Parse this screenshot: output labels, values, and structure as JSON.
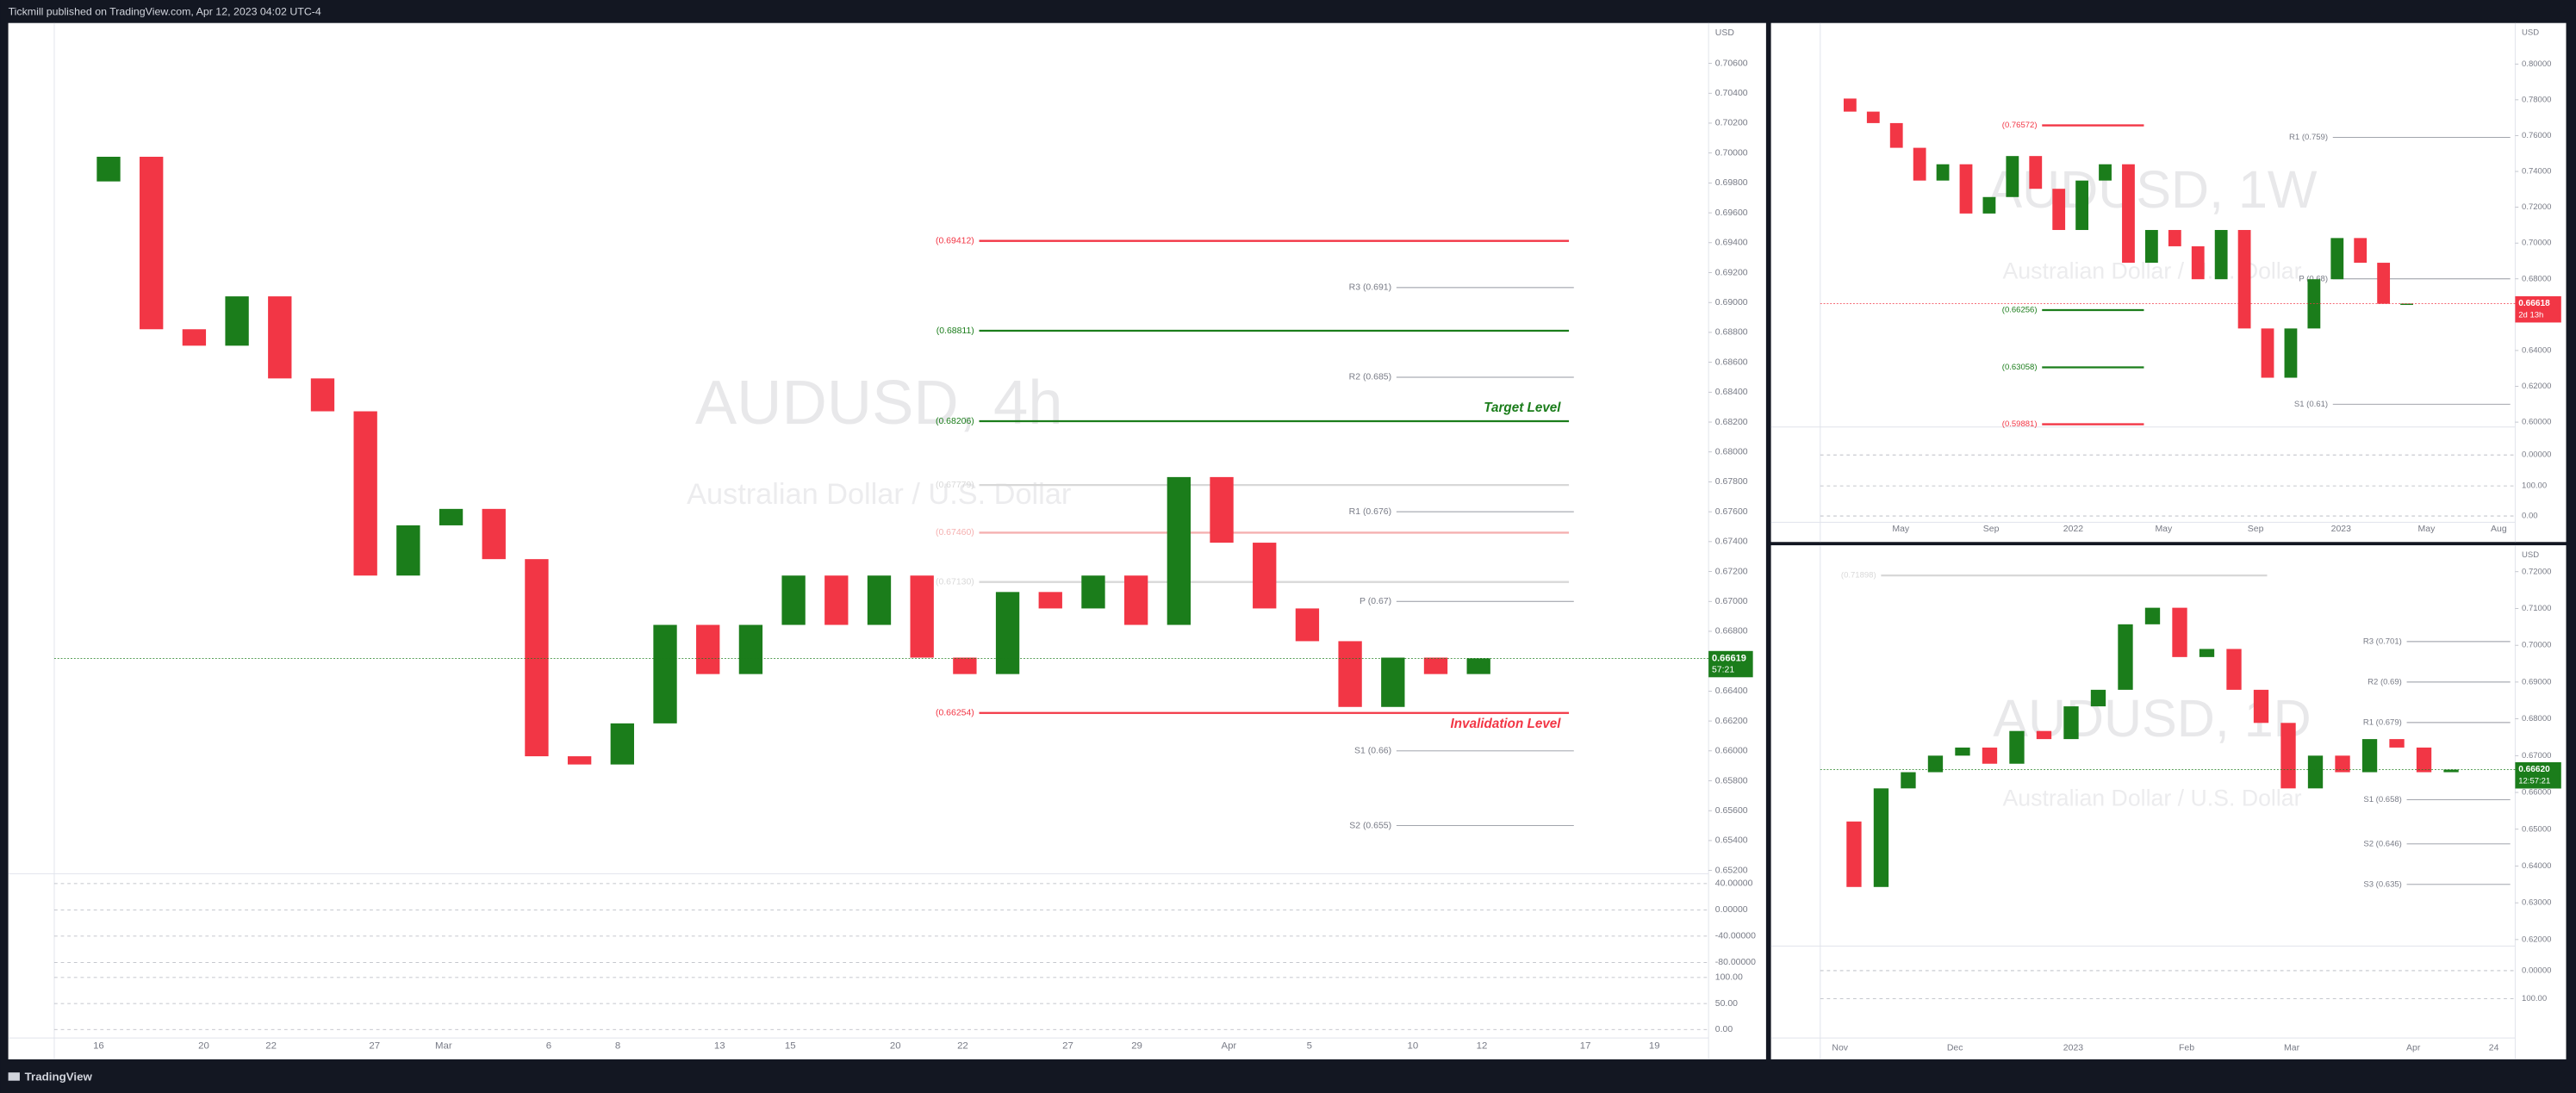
{
  "header": {
    "text": "Tickmill published on TradingView.com, Apr 12, 2023 04:02 UTC-4"
  },
  "footer": {
    "brand": "TradingView"
  },
  "panels": [
    {
      "title": "AUDUSD, 4h",
      "subtitle": "Australian Dollar / U.S. Dollar",
      "currency": "USD",
      "ylim": [
        0.652,
        0.7087
      ],
      "yticks": [
        {
          "value": 0.652,
          "label": "0.65200"
        },
        {
          "value": 0.654,
          "label": "0.65400"
        },
        {
          "value": 0.656,
          "label": "0.65600"
        },
        {
          "value": 0.658,
          "label": "0.65800"
        },
        {
          "value": 0.66,
          "label": "0.66000"
        },
        {
          "value": 0.662,
          "label": "0.66200"
        },
        {
          "value": 0.664,
          "label": "0.66400"
        },
        {
          "value": 0.666,
          "label": "0.66600"
        },
        {
          "value": 0.668,
          "label": "0.66800"
        },
        {
          "value": 0.67,
          "label": "0.67000"
        },
        {
          "value": 0.672,
          "label": "0.67200"
        },
        {
          "value": 0.674,
          "label": "0.67400"
        },
        {
          "value": 0.676,
          "label": "0.67600"
        },
        {
          "value": 0.678,
          "label": "0.67800"
        },
        {
          "value": 0.68,
          "label": "0.68000"
        },
        {
          "value": 0.682,
          "label": "0.68200"
        },
        {
          "value": 0.684,
          "label": "0.68400"
        },
        {
          "value": 0.686,
          "label": "0.68600"
        },
        {
          "value": 0.688,
          "label": "0.68800"
        },
        {
          "value": 0.69,
          "label": "0.69000"
        },
        {
          "value": 0.692,
          "label": "0.69200"
        },
        {
          "value": 0.694,
          "label": "0.69400"
        },
        {
          "value": 0.696,
          "label": "0.69600"
        },
        {
          "value": 0.698,
          "label": "0.69800"
        },
        {
          "value": 0.7,
          "label": "0.70000"
        },
        {
          "value": 0.702,
          "label": "0.70200"
        },
        {
          "value": 0.704,
          "label": "0.70400"
        },
        {
          "value": 0.706,
          "label": "0.70600"
        }
      ],
      "x_labels": [
        "16",
        "20",
        "22",
        "27",
        "Mar",
        "6",
        "8",
        "13",
        "15",
        "20",
        "22",
        "27",
        "29",
        "Apr",
        "5",
        "10",
        "12",
        "17",
        "19"
      ],
      "levels": [
        {
          "label": "(0.69412)",
          "value": 0.69412,
          "color": "#f23645"
        },
        {
          "label": "(0.68811)",
          "value": 0.68811,
          "color": "#1b7d1b"
        },
        {
          "label": "(0.68206)",
          "value": 0.68206,
          "color": "#1b7d1b",
          "note": "Target Level"
        },
        {
          "label": "(0.67779)",
          "value": 0.67779,
          "color": "#d8d8d8"
        },
        {
          "label": "(0.67460)",
          "value": 0.6746,
          "color": "#f5b0b0"
        },
        {
          "label": "(0.67130)",
          "value": 0.6713,
          "color": "#d8d8d8"
        },
        {
          "label": "(0.66254)",
          "value": 0.66254,
          "color": "#f23645",
          "note": "Invalidation Level"
        }
      ],
      "pivots": [
        {
          "label": "R3 (0.691)",
          "value": 0.691
        },
        {
          "label": "R2 (0.685)",
          "value": 0.685
        },
        {
          "label": "R1 (0.676)",
          "value": 0.676
        },
        {
          "label": "P (0.67)",
          "value": 0.67
        },
        {
          "label": "S1 (0.66)",
          "value": 0.66
        },
        {
          "label": "S2 (0.655)",
          "value": 0.655
        }
      ],
      "closes": [
        0.6981,
        0.69975,
        0.68821,
        0.68711,
        0.69041,
        0.68492,
        0.68272,
        0.67173,
        0.67509,
        0.67619,
        0.67283,
        0.65964,
        0.65909,
        0.66184,
        0.66843,
        0.66514,
        0.66843,
        0.67173,
        0.66843,
        0.67173,
        0.66624,
        0.66514,
        0.67063,
        0.66953,
        0.67173,
        0.66843,
        0.67832,
        0.67393,
        0.66953,
        0.66734,
        0.66294,
        0.66624,
        0.66514,
        0.66619
      ],
      "price_tag": {
        "value": 0.66619,
        "label": "0.66619",
        "countdown": "57:21",
        "color": "#1b7d1b"
      },
      "osc_ylim": [
        -90,
        50
      ],
      "osc_ticks": [
        {
          "value": 40,
          "label": "40.00000"
        },
        {
          "value": 0,
          "label": "0.00000"
        },
        {
          "value": -40,
          "label": "-40.00000"
        },
        {
          "value": -80,
          "label": "-80.00000"
        }
      ],
      "osc2_ylim": [
        -10,
        110
      ],
      "osc2_ticks": [
        {
          "value": 100,
          "label": "100.00"
        },
        {
          "value": 50,
          "label": "50.00"
        },
        {
          "value": 0,
          "label": "0.00"
        }
      ]
    },
    {
      "title": "AUDUSD, 1W",
      "subtitle": "Australian Dollar / U.S. Dollar",
      "currency": "USD",
      "ylim": [
        0.5991,
        0.8229
      ],
      "yticks": [
        {
          "value": 0.6,
          "label": "0.60000"
        },
        {
          "value": 0.62,
          "label": "0.62000"
        },
        {
          "value": 0.64,
          "label": "0.64000"
        },
        {
          "value": 0.66,
          "label": "0.66000"
        },
        {
          "value": 0.68,
          "label": "0.68000"
        },
        {
          "value": 0.7,
          "label": "0.70000"
        },
        {
          "value": 0.72,
          "label": "0.72000"
        },
        {
          "value": 0.74,
          "label": "0.74000"
        },
        {
          "value": 0.76,
          "label": "0.76000"
        },
        {
          "value": 0.78,
          "label": "0.78000"
        },
        {
          "value": 0.8,
          "label": "0.80000"
        }
      ],
      "x_labels": [
        "May",
        "Sep",
        "2022",
        "May",
        "Sep",
        "2023",
        "May",
        "Aug"
      ],
      "levels": [
        {
          "label": "(0.76572)",
          "value": 0.76572,
          "color": "#f23645"
        },
        {
          "label": "(0.66256)",
          "value": 0.66256,
          "color": "#1b7d1b"
        },
        {
          "label": "(0.63058)",
          "value": 0.63058,
          "color": "#1b7d1b"
        },
        {
          "label": "(0.59881)",
          "value": 0.59881,
          "color": "#f23645"
        }
      ],
      "pivots": [
        {
          "label": "R1 (0.759)",
          "value": 0.759
        },
        {
          "label": "P (0.68)",
          "value": 0.68
        },
        {
          "label": "S1 (0.61)",
          "value": 0.61
        }
      ],
      "closes": [
        0.7807,
        0.7734,
        0.767,
        0.7532,
        0.7349,
        0.744,
        0.7165,
        0.7257,
        0.7486,
        0.7303,
        0.7073,
        0.7349,
        0.744,
        0.689,
        0.7073,
        0.6982,
        0.6798,
        0.7073,
        0.6523,
        0.6248,
        0.6523,
        0.6798,
        0.7028,
        0.689,
        0.6661,
        0.66618
      ],
      "price_tag": {
        "value": 0.66618,
        "label": "0.66618",
        "countdown": "2d 13h",
        "color": "#f23645"
      },
      "osc_ylim": [
        -40,
        40
      ],
      "osc_ticks": [
        {
          "value": 0,
          "label": "0.00000"
        }
      ],
      "osc2_ylim": [
        -10,
        110
      ],
      "osc2_ticks": [
        {
          "value": 100,
          "label": "100.00"
        },
        {
          "value": 0,
          "label": "0.00"
        }
      ]
    },
    {
      "title": "AUDUSD, 1D",
      "subtitle": "Australian Dollar / U.S. Dollar",
      "currency": "USD",
      "ylim": [
        0.6187,
        0.7254
      ],
      "yticks": [
        {
          "value": 0.62,
          "label": "0.62000"
        },
        {
          "value": 0.63,
          "label": "0.63000"
        },
        {
          "value": 0.64,
          "label": "0.64000"
        },
        {
          "value": 0.65,
          "label": "0.65000"
        },
        {
          "value": 0.66,
          "label": "0.66000"
        },
        {
          "value": 0.67,
          "label": "0.67000"
        },
        {
          "value": 0.68,
          "label": "0.68000"
        },
        {
          "value": 0.69,
          "label": "0.69000"
        },
        {
          "value": 0.7,
          "label": "0.70000"
        },
        {
          "value": 0.71,
          "label": "0.71000"
        },
        {
          "value": 0.72,
          "label": "0.72000"
        }
      ],
      "x_labels": [
        "Nov",
        "Dec",
        "2023",
        "Feb",
        "Mar",
        "Apr",
        "24"
      ],
      "levels": [
        {
          "label": "(0.71898)",
          "value": 0.71898,
          "color": "#d8d8d8"
        }
      ],
      "pivots": [
        {
          "label": "R3 (0.701)",
          "value": 0.701
        },
        {
          "label": "R2 (0.69)",
          "value": 0.69
        },
        {
          "label": "R1 (0.679)",
          "value": 0.679
        },
        {
          "label": "S1 (0.658)",
          "value": 0.658
        },
        {
          "label": "S2 (0.646)",
          "value": 0.646
        },
        {
          "label": "S3 (0.635)",
          "value": 0.635
        }
      ],
      "closes": [
        0.6521,
        0.6343,
        0.6611,
        0.6655,
        0.67,
        0.6722,
        0.6678,
        0.6767,
        0.6745,
        0.6834,
        0.6879,
        0.7057,
        0.7102,
        0.6968,
        0.699,
        0.6879,
        0.6789,
        0.6611,
        0.67,
        0.6655,
        0.6745,
        0.6722,
        0.6655,
        0.6662
      ],
      "price_tag": {
        "value": 0.6662,
        "label": "0.66620",
        "countdown": "12:57:21",
        "color": "#1b7d1b"
      },
      "osc_ylim": [
        -40,
        40
      ],
      "osc_ticks": [
        {
          "value": 0,
          "label": "0.00000"
        }
      ],
      "osc2_ylim": [
        -10,
        110
      ],
      "osc2_ticks": [
        {
          "value": 100,
          "label": "100.00"
        }
      ]
    }
  ]
}
